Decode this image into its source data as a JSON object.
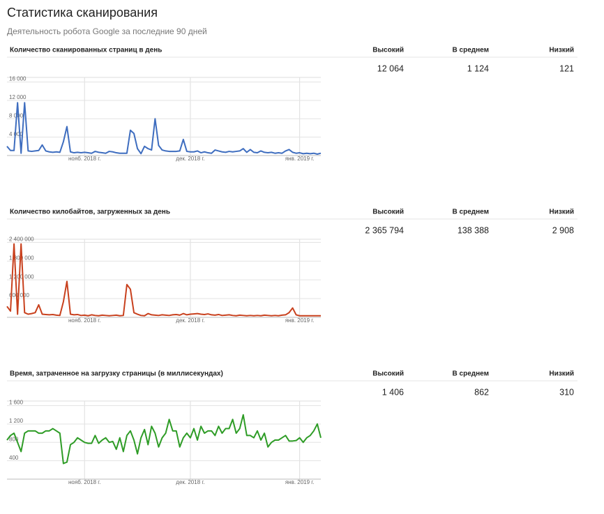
{
  "header": {
    "title": "Статистика сканирования",
    "subtitle": "Деятельность робота Google за последние 90 дней"
  },
  "sections": [
    {
      "title": "Количество сканированных страниц в день",
      "columns": [
        "Высокий",
        "В среднем",
        "Низкий"
      ],
      "stats": [
        "12 064",
        "1 124",
        "121"
      ],
      "chart": {
        "type": "line",
        "color": "#3e6dbf",
        "ylim": [
          0,
          17000
        ],
        "yticks": [
          {
            "value": 4000,
            "label": "4 000"
          },
          {
            "value": 8000,
            "label": "8 000"
          },
          {
            "value": 12000,
            "label": "12 000"
          },
          {
            "value": 16000,
            "label": "16 000"
          }
        ],
        "categories": [
          null,
          null,
          null,
          null,
          null,
          null,
          null,
          null,
          null,
          null,
          null,
          null,
          null,
          null,
          null,
          null,
          null,
          null,
          null,
          null,
          null,
          null,
          "нояб. 2018 г.",
          null,
          null,
          null,
          null,
          null,
          null,
          null,
          null,
          null,
          null,
          null,
          null,
          null,
          null,
          null,
          null,
          null,
          null,
          null,
          null,
          null,
          null,
          null,
          null,
          null,
          null,
          null,
          null,
          null,
          "дек. 2018 г.",
          null,
          null,
          null,
          null,
          null,
          null,
          null,
          null,
          null,
          null,
          null,
          null,
          null,
          null,
          null,
          null,
          null,
          null,
          null,
          null,
          null,
          null,
          null,
          null,
          null,
          null,
          null,
          null,
          null,
          null,
          "янв. 2019 г.",
          null,
          null,
          null,
          null,
          null,
          null
        ],
        "values": [
          2000,
          1100,
          1100,
          11500,
          500,
          11500,
          1000,
          900,
          1000,
          1100,
          2300,
          1000,
          800,
          700,
          800,
          700,
          3000,
          6300,
          800,
          600,
          700,
          600,
          700,
          600,
          500,
          900,
          700,
          600,
          500,
          900,
          800,
          600,
          500,
          500,
          500,
          5500,
          4800,
          1500,
          400,
          2000,
          1500,
          1200,
          8000,
          2200,
          1200,
          1000,
          900,
          900,
          900,
          1000,
          3500,
          900,
          800,
          800,
          1000,
          600,
          800,
          600,
          500,
          1200,
          1000,
          800,
          700,
          900,
          800,
          900,
          1000,
          1500,
          700,
          1300,
          700,
          600,
          1000,
          700,
          600,
          700,
          500,
          600,
          500,
          1000,
          1300,
          700,
          500,
          600,
          400,
          500,
          400,
          500,
          300,
          500
        ]
      }
    },
    {
      "title": "Количество килобайтов, загруженных за день",
      "columns": [
        "Высокий",
        "В среднем",
        "Низкий"
      ],
      "stats": [
        "2 365 794",
        "138 388",
        "2 908"
      ],
      "chart": {
        "type": "line",
        "color": "#c8401d",
        "ylim": [
          0,
          2500000
        ],
        "yticks": [
          {
            "value": 600000,
            "label": "600 000"
          },
          {
            "value": 1200000,
            "label": "1 200 000"
          },
          {
            "value": 1800000,
            "label": "1 800 000"
          },
          {
            "value": 2400000,
            "label": "2 400 000"
          }
        ],
        "categories": [
          null,
          null,
          null,
          null,
          null,
          null,
          null,
          null,
          null,
          null,
          null,
          null,
          null,
          null,
          null,
          null,
          null,
          null,
          null,
          null,
          null,
          null,
          "нояб. 2018 г.",
          null,
          null,
          null,
          null,
          null,
          null,
          null,
          null,
          null,
          null,
          null,
          null,
          null,
          null,
          null,
          null,
          null,
          null,
          null,
          null,
          null,
          null,
          null,
          null,
          null,
          null,
          null,
          null,
          null,
          "дек. 2018 г.",
          null,
          null,
          null,
          null,
          null,
          null,
          null,
          null,
          null,
          null,
          null,
          null,
          null,
          null,
          null,
          null,
          null,
          null,
          null,
          null,
          null,
          null,
          null,
          null,
          null,
          null,
          null,
          null,
          null,
          null,
          "янв. 2019 г.",
          null,
          null,
          null,
          null,
          null,
          null
        ],
        "values": [
          350000,
          200000,
          2350000,
          100000,
          2350000,
          150000,
          100000,
          120000,
          150000,
          400000,
          100000,
          90000,
          80000,
          90000,
          70000,
          60000,
          500000,
          1150000,
          100000,
          80000,
          90000,
          60000,
          70000,
          50000,
          80000,
          60000,
          50000,
          70000,
          60000,
          50000,
          60000,
          70000,
          50000,
          60000,
          1050000,
          900000,
          150000,
          100000,
          60000,
          50000,
          120000,
          80000,
          70000,
          60000,
          80000,
          70000,
          60000,
          80000,
          90000,
          70000,
          120000,
          80000,
          100000,
          110000,
          120000,
          100000,
          90000,
          110000,
          80000,
          70000,
          90000,
          60000,
          70000,
          80000,
          60000,
          50000,
          70000,
          60000,
          50000,
          60000,
          50000,
          60000,
          50000,
          70000,
          60000,
          50000,
          60000,
          50000,
          70000,
          80000,
          150000,
          300000,
          80000,
          50000,
          50000,
          50000,
          50000,
          50000,
          50000,
          50000
        ]
      }
    },
    {
      "title": "Время, затраченное на загрузку страницы (в миллисекундах)",
      "columns": [
        "Высокий",
        "В среднем",
        "Низкий"
      ],
      "stats": [
        "1 406",
        "862",
        "310"
      ],
      "chart": {
        "type": "line",
        "color": "#2e9c26",
        "ylim": [
          0,
          1700
        ],
        "yticks": [
          400,
          800,
          {
            "value": 1200,
            "label": "1 200"
          },
          {
            "value": 1600,
            "label": "1 600"
          }
        ],
        "categories": [
          null,
          null,
          null,
          null,
          null,
          null,
          null,
          null,
          null,
          null,
          null,
          null,
          null,
          null,
          null,
          null,
          null,
          null,
          null,
          null,
          null,
          null,
          "нояб. 2018 г.",
          null,
          null,
          null,
          null,
          null,
          null,
          null,
          null,
          null,
          null,
          null,
          null,
          null,
          null,
          null,
          null,
          null,
          null,
          null,
          null,
          null,
          null,
          null,
          null,
          null,
          null,
          null,
          null,
          null,
          "дек. 2018 г.",
          null,
          null,
          null,
          null,
          null,
          null,
          null,
          null,
          null,
          null,
          null,
          null,
          null,
          null,
          null,
          null,
          null,
          null,
          null,
          null,
          null,
          null,
          null,
          null,
          null,
          null,
          null,
          null,
          null,
          null,
          "янв. 2019 г.",
          null,
          null,
          null,
          null,
          null,
          null
        ],
        "values": [
          850,
          950,
          1000,
          800,
          600,
          1000,
          1050,
          1050,
          1050,
          1000,
          1000,
          1050,
          1050,
          1100,
          1050,
          1000,
          340,
          370,
          750,
          800,
          900,
          850,
          800,
          780,
          780,
          950,
          780,
          850,
          900,
          800,
          820,
          650,
          900,
          600,
          950,
          1050,
          850,
          550,
          900,
          1080,
          750,
          1150,
          1000,
          700,
          900,
          1000,
          1300,
          1050,
          1050,
          700,
          900,
          1000,
          900,
          1100,
          850,
          1150,
          1000,
          1050,
          1050,
          950,
          1150,
          1000,
          1100,
          1100,
          1300,
          1000,
          1100,
          1400,
          950,
          950,
          900,
          1050,
          850,
          1000,
          700,
          800,
          850,
          850,
          900,
          950,
          830,
          830,
          840,
          900,
          800,
          900,
          950,
          1050,
          1200,
          900
        ]
      }
    }
  ]
}
